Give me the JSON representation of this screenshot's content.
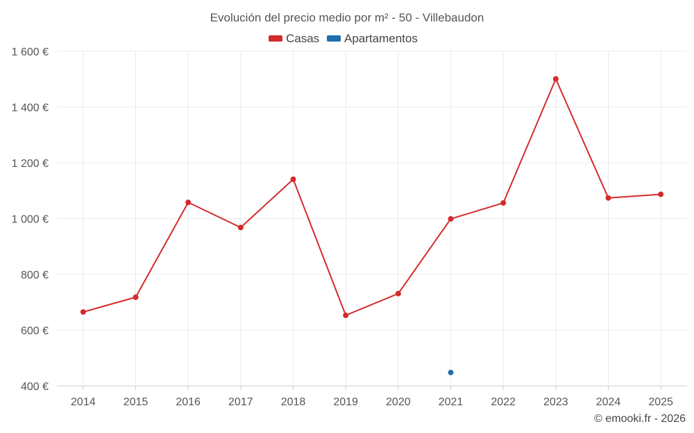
{
  "chart_data": {
    "type": "line",
    "title": "Evolución del precio medio por m² - 50 - Villebaudon",
    "categories": [
      "2014",
      "2015",
      "2016",
      "2017",
      "2018",
      "2019",
      "2020",
      "2021",
      "2022",
      "2023",
      "2024",
      "2025"
    ],
    "series": [
      {
        "name": "Casas",
        "color": "#d42a2a",
        "values": [
          665,
          718,
          1058,
          968,
          1141,
          653,
          731,
          999,
          1056,
          1501,
          1074,
          1087
        ]
      },
      {
        "name": "Apartamentos",
        "color": "#1f6fad",
        "values": [
          null,
          null,
          null,
          null,
          null,
          null,
          null,
          448,
          null,
          null,
          null,
          null
        ]
      }
    ],
    "ylim": [
      400,
      1600
    ],
    "yticks": [
      400,
      600,
      800,
      1000,
      1200,
      1400,
      1600
    ],
    "ytick_labels": [
      "400 €",
      "600 €",
      "800 €",
      "1 000 €",
      "1 200 €",
      "1 400 €",
      "1 600 €"
    ],
    "xlabel": "",
    "ylabel": "",
    "grid": true,
    "legend": "top-center"
  },
  "credit": "© emooki.fr - 2026"
}
